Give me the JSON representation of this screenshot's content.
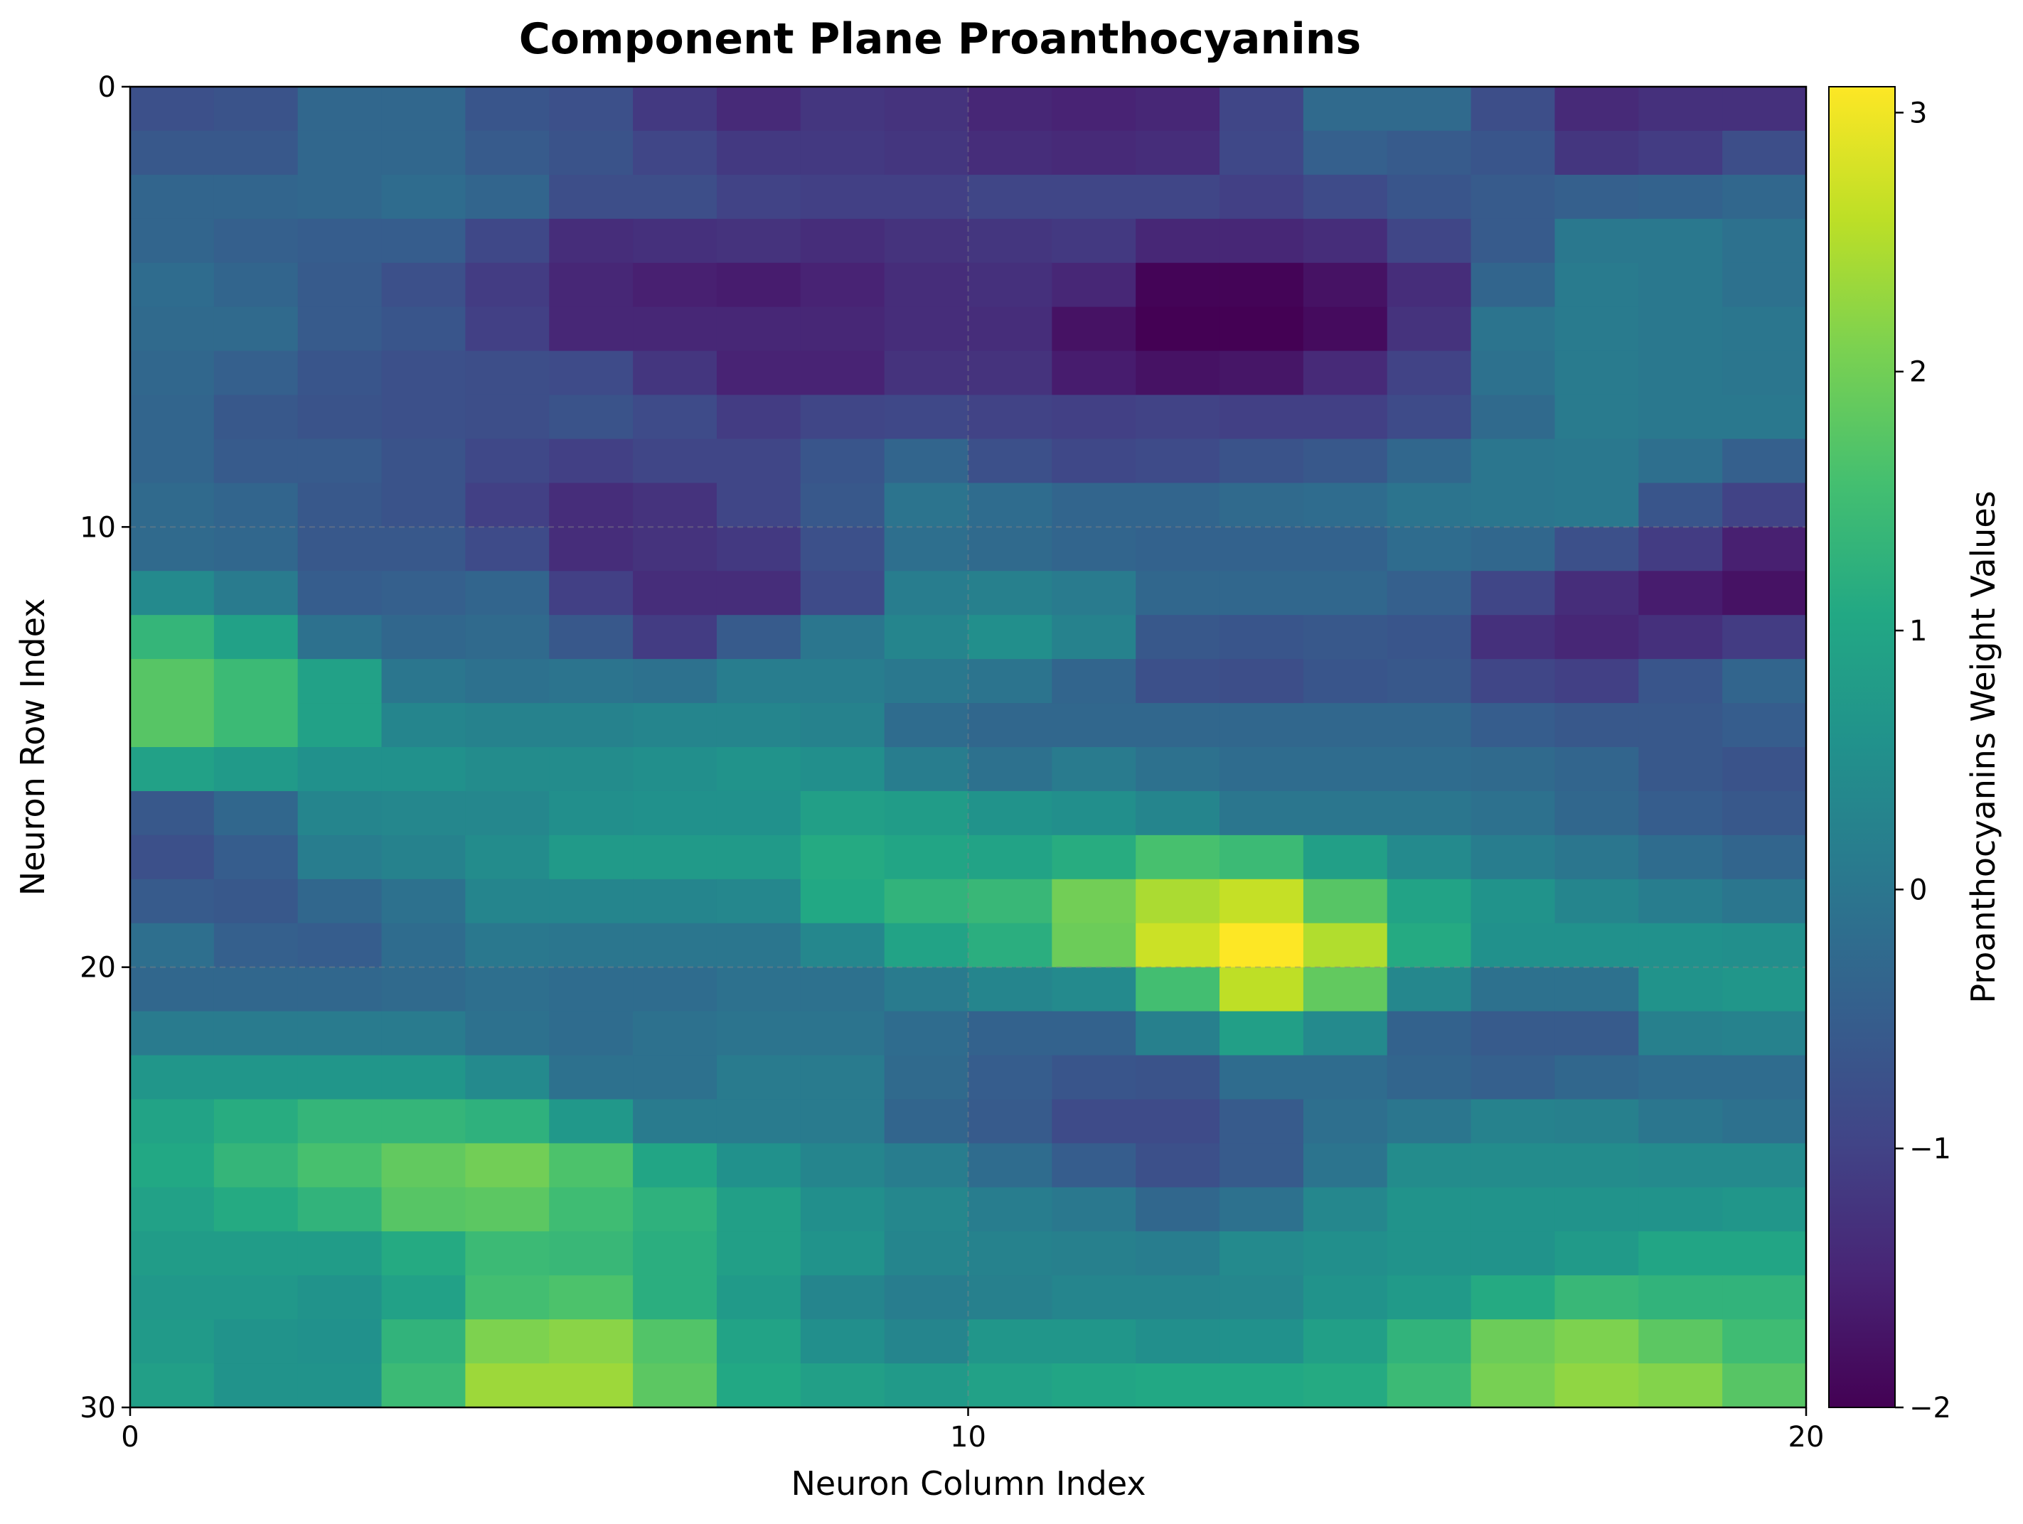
{
  "chart_data": {
    "type": "heatmap",
    "title": "Component Plane Proanthocyanins",
    "xlabel": "Neuron Column Index",
    "ylabel": "Neuron Row Index",
    "colorbar_label": "Proanthocyanins Weight Values",
    "colormap": "viridis",
    "xlim": [
      0,
      20
    ],
    "ylim": [
      0,
      30
    ],
    "y_inverted": true,
    "grid": "dashed, faint",
    "x_ticks": [
      0,
      10,
      20
    ],
    "y_ticks": [
      0,
      10,
      20,
      30
    ],
    "clim": [
      -2,
      3.1
    ],
    "colorbar_ticks": [
      -2,
      -1,
      0,
      1,
      2,
      3
    ],
    "colorbar_tick_labels": [
      "−2",
      "−1",
      "0",
      "1",
      "2",
      "3"
    ],
    "rows": 30,
    "cols": 20,
    "values": [
      [
        -0.75,
        -0.7,
        -0.3,
        -0.3,
        -0.65,
        -0.75,
        -1.15,
        -1.4,
        -1.2,
        -1.25,
        -1.45,
        -1.5,
        -1.45,
        -0.95,
        -0.25,
        -0.25,
        -0.8,
        -1.4,
        -1.3,
        -1.3
      ],
      [
        -0.6,
        -0.6,
        -0.3,
        -0.3,
        -0.55,
        -0.7,
        -0.95,
        -1.15,
        -1.15,
        -1.2,
        -1.35,
        -1.4,
        -1.35,
        -0.9,
        -0.45,
        -0.55,
        -0.65,
        -1.2,
        -1.1,
        -0.8
      ],
      [
        -0.35,
        -0.35,
        -0.3,
        -0.2,
        -0.35,
        -0.8,
        -0.8,
        -1.0,
        -1.05,
        -1.05,
        -0.95,
        -0.95,
        -0.95,
        -1.05,
        -0.85,
        -0.65,
        -0.55,
        -0.45,
        -0.4,
        -0.3
      ],
      [
        -0.35,
        -0.45,
        -0.5,
        -0.5,
        -0.9,
        -1.35,
        -1.3,
        -1.25,
        -1.35,
        -1.25,
        -1.2,
        -1.15,
        -1.45,
        -1.45,
        -1.35,
        -0.95,
        -0.55,
        0.05,
        0.05,
        -0.1
      ],
      [
        -0.2,
        -0.35,
        -0.55,
        -0.75,
        -1.1,
        -1.45,
        -1.55,
        -1.6,
        -1.5,
        -1.35,
        -1.3,
        -1.45,
        -1.95,
        -1.95,
        -1.75,
        -1.35,
        -0.35,
        0.1,
        0.05,
        -0.1
      ],
      [
        -0.25,
        -0.25,
        -0.55,
        -0.65,
        -1.05,
        -1.45,
        -1.45,
        -1.45,
        -1.45,
        -1.35,
        -1.35,
        -1.75,
        -2.0,
        -2.0,
        -1.85,
        -1.25,
        -0.05,
        0.1,
        0.05,
        0.0
      ],
      [
        -0.3,
        -0.45,
        -0.65,
        -0.75,
        -0.8,
        -0.85,
        -1.2,
        -1.5,
        -1.5,
        -1.25,
        -1.25,
        -1.6,
        -1.75,
        -1.7,
        -1.4,
        -1.0,
        -0.1,
        0.1,
        0.05,
        0.0
      ],
      [
        -0.35,
        -0.6,
        -0.7,
        -0.75,
        -0.8,
        -0.7,
        -0.85,
        -1.1,
        -0.95,
        -0.9,
        -1.0,
        -1.05,
        -1.0,
        -1.05,
        -1.05,
        -0.85,
        -0.25,
        0.1,
        0.05,
        0.05
      ],
      [
        -0.35,
        -0.55,
        -0.55,
        -0.7,
        -0.9,
        -1.05,
        -0.95,
        -0.95,
        -0.65,
        -0.35,
        -0.75,
        -0.9,
        -0.85,
        -0.7,
        -0.6,
        -0.3,
        0.0,
        0.05,
        -0.15,
        -0.45
      ],
      [
        -0.25,
        -0.35,
        -0.6,
        -0.7,
        -1.05,
        -1.35,
        -1.25,
        -0.95,
        -0.6,
        -0.05,
        -0.2,
        -0.35,
        -0.35,
        -0.25,
        -0.2,
        -0.05,
        0.0,
        0.05,
        -0.65,
        -1.0
      ],
      [
        -0.25,
        -0.3,
        -0.6,
        -0.6,
        -0.85,
        -1.35,
        -1.25,
        -1.15,
        -0.75,
        -0.15,
        -0.25,
        -0.35,
        -0.4,
        -0.4,
        -0.4,
        -0.2,
        -0.3,
        -0.75,
        -1.1,
        -1.55
      ],
      [
        0.4,
        0.1,
        -0.5,
        -0.45,
        -0.35,
        -1.05,
        -1.35,
        -1.35,
        -0.85,
        0.15,
        0.2,
        0.1,
        -0.3,
        -0.3,
        -0.3,
        -0.45,
        -0.95,
        -1.35,
        -1.6,
        -1.75
      ],
      [
        1.35,
        0.9,
        -0.1,
        -0.3,
        -0.25,
        -0.6,
        -1.1,
        -0.55,
        0.0,
        0.3,
        0.5,
        0.25,
        -0.6,
        -0.65,
        -0.6,
        -0.65,
        -1.3,
        -1.45,
        -1.3,
        -1.1
      ],
      [
        1.75,
        1.45,
        0.9,
        0.0,
        -0.1,
        -0.05,
        -0.1,
        0.15,
        0.15,
        0.05,
        -0.05,
        -0.35,
        -0.75,
        -0.8,
        -0.65,
        -0.6,
        -0.95,
        -1.05,
        -0.65,
        -0.35
      ],
      [
        1.75,
        1.45,
        0.9,
        0.3,
        0.25,
        0.25,
        0.3,
        0.3,
        0.25,
        -0.2,
        -0.3,
        -0.3,
        -0.3,
        -0.3,
        -0.3,
        -0.3,
        -0.5,
        -0.6,
        -0.6,
        -0.5
      ],
      [
        0.9,
        0.75,
        0.55,
        0.55,
        0.45,
        0.45,
        0.5,
        0.6,
        0.5,
        0.15,
        -0.1,
        0.1,
        -0.1,
        -0.2,
        -0.2,
        -0.2,
        -0.25,
        -0.35,
        -0.6,
        -0.7
      ],
      [
        -0.6,
        -0.3,
        0.3,
        0.35,
        0.35,
        0.5,
        0.55,
        0.55,
        0.85,
        0.8,
        0.6,
        0.5,
        0.3,
        0.0,
        0.0,
        0.0,
        -0.1,
        -0.3,
        -0.5,
        -0.6
      ],
      [
        -0.75,
        -0.5,
        0.15,
        0.25,
        0.45,
        0.75,
        0.75,
        0.75,
        1.1,
        1.0,
        0.95,
        1.15,
        1.6,
        1.45,
        0.85,
        0.4,
        0.15,
        0.0,
        -0.2,
        -0.35
      ],
      [
        -0.55,
        -0.6,
        -0.3,
        -0.1,
        0.3,
        0.3,
        0.3,
        0.35,
        1.05,
        1.3,
        1.4,
        2.0,
        2.45,
        2.65,
        1.75,
        0.95,
        0.6,
        0.3,
        0.15,
        0.0
      ],
      [
        -0.15,
        -0.45,
        -0.5,
        -0.2,
        0.05,
        0.0,
        0.0,
        0.0,
        0.35,
        0.95,
        1.2,
        1.95,
        2.7,
        3.1,
        2.5,
        1.1,
        0.55,
        0.55,
        0.55,
        0.5
      ],
      [
        -0.3,
        -0.3,
        -0.3,
        -0.25,
        -0.15,
        -0.2,
        -0.2,
        -0.1,
        -0.1,
        0.1,
        0.3,
        0.4,
        1.55,
        2.6,
        1.85,
        0.35,
        -0.1,
        -0.1,
        0.6,
        0.65
      ],
      [
        0.1,
        0.1,
        0.1,
        0.1,
        -0.1,
        -0.2,
        -0.1,
        -0.05,
        -0.05,
        -0.2,
        -0.4,
        -0.4,
        0.2,
        0.85,
        0.4,
        -0.4,
        -0.55,
        -0.55,
        0.2,
        0.25
      ],
      [
        0.65,
        0.65,
        0.65,
        0.65,
        0.4,
        -0.1,
        -0.1,
        0.1,
        0.1,
        -0.25,
        -0.5,
        -0.65,
        -0.7,
        -0.2,
        -0.2,
        -0.35,
        -0.45,
        -0.3,
        -0.2,
        -0.2
      ],
      [
        0.95,
        1.15,
        1.35,
        1.35,
        1.25,
        0.7,
        0.1,
        0.1,
        0.1,
        -0.35,
        -0.55,
        -0.85,
        -0.85,
        -0.55,
        -0.15,
        0.0,
        0.25,
        0.2,
        0.0,
        -0.1
      ],
      [
        1.05,
        1.35,
        1.6,
        1.85,
        2.0,
        1.65,
        1.0,
        0.55,
        0.3,
        0.15,
        -0.2,
        -0.5,
        -0.75,
        -0.55,
        -0.05,
        0.45,
        0.45,
        0.45,
        0.4,
        0.4
      ],
      [
        0.9,
        1.1,
        1.3,
        1.75,
        1.8,
        1.5,
        1.25,
        0.85,
        0.5,
        0.35,
        0.15,
        0.05,
        -0.3,
        -0.1,
        0.35,
        0.6,
        0.6,
        0.6,
        0.6,
        0.65
      ],
      [
        0.8,
        0.8,
        0.8,
        1.1,
        1.45,
        1.4,
        1.2,
        0.85,
        0.6,
        0.3,
        0.25,
        0.2,
        0.15,
        0.4,
        0.5,
        0.6,
        0.6,
        0.75,
        1.0,
        1.0
      ],
      [
        0.7,
        0.7,
        0.6,
        0.9,
        1.55,
        1.65,
        1.2,
        0.75,
        0.3,
        0.15,
        0.2,
        0.3,
        0.3,
        0.35,
        0.6,
        0.75,
        1.1,
        1.4,
        1.3,
        1.3
      ],
      [
        0.75,
        0.6,
        0.55,
        1.3,
        2.1,
        2.2,
        1.7,
        0.95,
        0.5,
        0.3,
        0.65,
        0.65,
        0.5,
        0.55,
        0.85,
        1.3,
        1.95,
        2.1,
        1.8,
        1.5
      ],
      [
        0.85,
        0.6,
        0.6,
        1.45,
        2.35,
        2.35,
        1.8,
        1.05,
        0.85,
        0.75,
        0.9,
        1.0,
        1.05,
        1.05,
        1.1,
        1.45,
        2.05,
        2.25,
        2.15,
        1.75
      ]
    ]
  }
}
